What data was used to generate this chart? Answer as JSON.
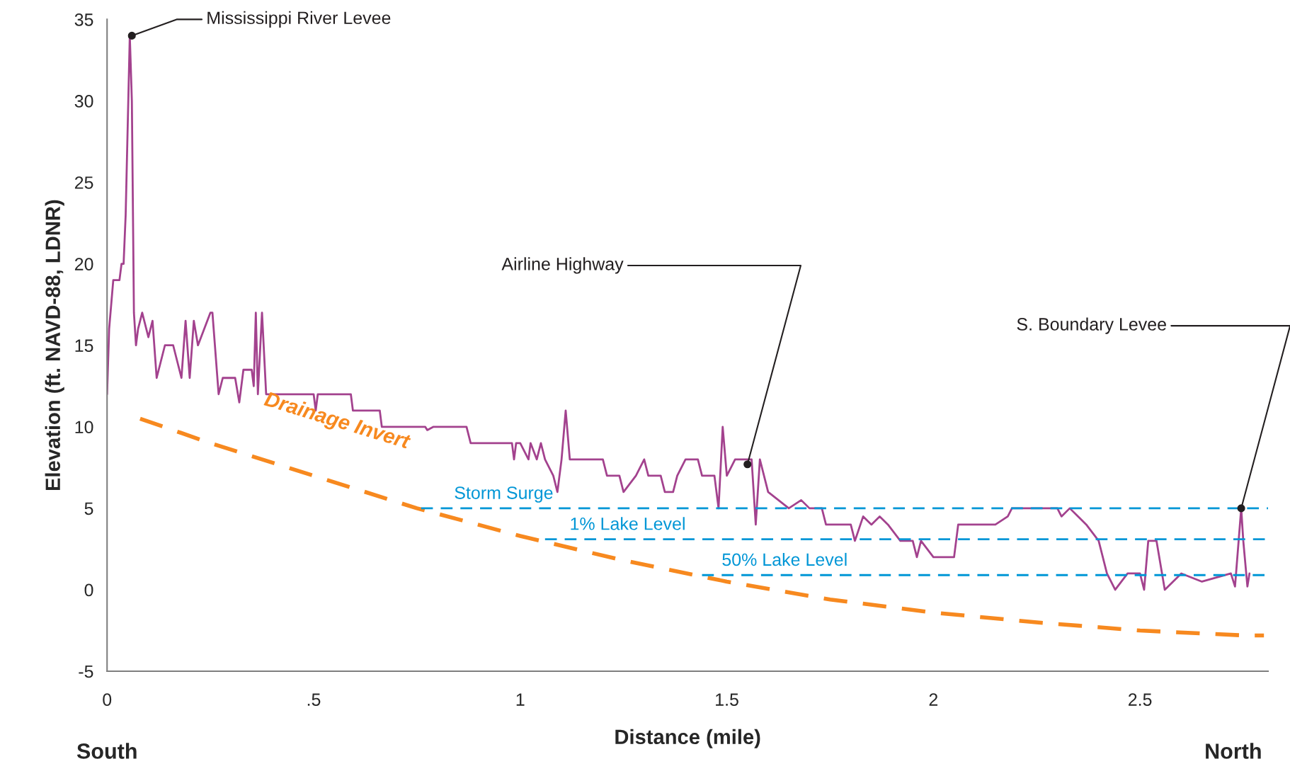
{
  "chart_data": {
    "type": "line",
    "xlabel": "Distance (mile)",
    "ylabel": "Elevation (ft. NAVD-88, LDNR)",
    "xlim": [
      0,
      2.81
    ],
    "ylim": [
      -5,
      35
    ],
    "xticks": [
      0,
      {
        "value": 0.5,
        "label": ".5"
      },
      1,
      1.5,
      2,
      2.5
    ],
    "yticks": [
      -5,
      0,
      5,
      10,
      15,
      20,
      25,
      30,
      35
    ],
    "grid": false,
    "legend": false,
    "marker": "none",
    "series": [
      {
        "color": "#a3428e",
        "line_style": "solid",
        "x": [
          0,
          0.005,
          0.015,
          0.03,
          0.035,
          0.04,
          0.045,
          0.055,
          0.06,
          0.065,
          0.07,
          0.075,
          0.085,
          0.09,
          0.1,
          0.11,
          0.12,
          0.13,
          0.14,
          0.16,
          0.17,
          0.18,
          0.19,
          0.2,
          0.21,
          0.22,
          0.25,
          0.255,
          0.27,
          0.28,
          0.31,
          0.32,
          0.33,
          0.35,
          0.355,
          0.36,
          0.365,
          0.375,
          0.385,
          0.5,
          0.505,
          0.51,
          0.59,
          0.595,
          0.66,
          0.665,
          0.77,
          0.775,
          0.79,
          0.87,
          0.88,
          0.98,
          0.985,
          0.99,
          1.0,
          1.01,
          1.02,
          1.025,
          1.04,
          1.05,
          1.06,
          1.08,
          1.09,
          1.1,
          1.11,
          1.12,
          1.15,
          1.2,
          1.21,
          1.24,
          1.25,
          1.28,
          1.3,
          1.31,
          1.34,
          1.35,
          1.37,
          1.38,
          1.4,
          1.43,
          1.44,
          1.47,
          1.48,
          1.49,
          1.5,
          1.52,
          1.55,
          1.56,
          1.57,
          1.58,
          1.6,
          1.65,
          1.68,
          1.7,
          1.73,
          1.74,
          1.8,
          1.81,
          1.83,
          1.85,
          1.87,
          1.89,
          1.92,
          1.95,
          1.96,
          1.97,
          2.0,
          2.05,
          2.06,
          2.15,
          2.18,
          2.19,
          2.3,
          2.31,
          2.33,
          2.37,
          2.4,
          2.42,
          2.44,
          2.47,
          2.5,
          2.51,
          2.52,
          2.54,
          2.56,
          2.6,
          2.65,
          2.72,
          2.73,
          2.745,
          2.75,
          2.76,
          2.765
        ],
        "values": [
          12,
          16,
          19,
          19,
          20,
          20,
          23,
          34,
          30,
          17,
          15,
          16,
          17,
          16.5,
          15.5,
          16.5,
          13,
          14,
          15,
          15,
          14,
          13,
          16.5,
          13,
          16.5,
          15,
          17,
          17,
          12,
          13,
          13,
          11.5,
          13.5,
          13.5,
          12.5,
          17,
          12,
          17,
          12,
          12,
          11,
          12,
          12,
          11,
          11,
          10,
          10,
          9.8,
          10,
          10,
          9,
          9,
          8,
          9,
          9,
          8.5,
          8,
          9,
          8,
          9,
          8,
          7,
          6,
          8,
          11,
          8,
          8,
          8,
          7,
          7,
          6,
          7,
          8,
          7,
          7,
          6,
          6,
          7,
          8,
          8,
          7,
          7,
          5,
          10,
          7,
          8,
          8,
          8,
          4,
          8,
          6,
          5,
          5.5,
          5,
          5,
          4,
          4,
          3,
          4.5,
          4,
          4.5,
          4,
          3,
          3,
          2,
          3,
          2,
          2,
          4,
          4,
          4.5,
          5,
          5,
          4.5,
          5,
          4,
          3,
          1,
          0,
          1,
          1,
          0,
          3,
          3,
          0,
          1,
          0.5,
          1,
          0.2,
          5,
          3,
          0.2,
          1
        ]
      },
      {
        "name": "Drainage Invert",
        "color": "#f7891f",
        "line_style": "dashed",
        "x": [
          0.08,
          0.25,
          0.5,
          0.75,
          1.0,
          1.25,
          1.5,
          1.75,
          2.0,
          2.25,
          2.5,
          2.75,
          2.8
        ],
        "values": [
          10.5,
          9,
          7,
          5,
          3.3,
          1.8,
          0.5,
          -0.6,
          -1.4,
          -2,
          -2.5,
          -2.8,
          -2.8
        ]
      },
      {
        "name": "Storm Surge",
        "color": "#0096d6",
        "line_style": "dashed",
        "x": [
          0.76,
          2.81
        ],
        "values": [
          5,
          5
        ]
      },
      {
        "name": "1% Lake Level",
        "color": "#0096d6",
        "line_style": "dashed",
        "x": [
          1.06,
          2.81
        ],
        "values": [
          3.1,
          3.1
        ]
      },
      {
        "name": "50% Lake Level",
        "color": "#0096d6",
        "line_style": "dashed",
        "x": [
          1.44,
          2.81
        ],
        "values": [
          0.9,
          0.9
        ]
      }
    ],
    "annotations": [
      {
        "text": "Mississippi River Levee",
        "x": 0.06,
        "y": 34
      },
      {
        "text": "Airline Highway",
        "x": 1.55,
        "y": 7.7
      },
      {
        "text": "S. Boundary Levee",
        "x": 2.745,
        "y": 5
      },
      "South",
      "North"
    ]
  }
}
